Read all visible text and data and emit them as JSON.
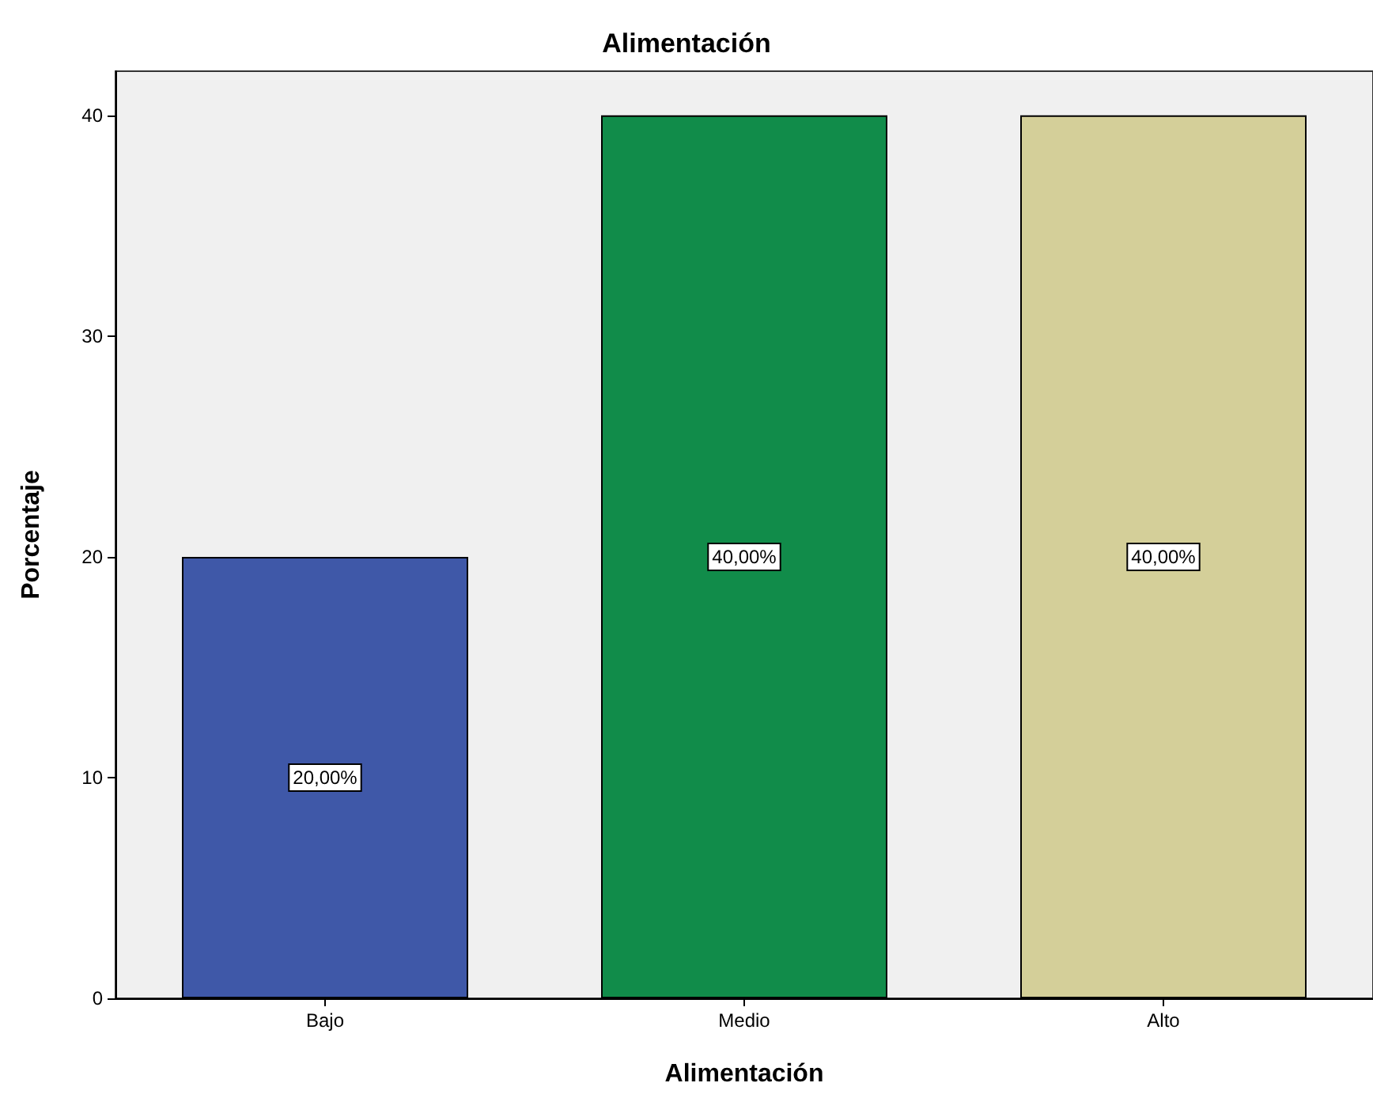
{
  "chart_data": {
    "type": "bar",
    "title": "Alimentación",
    "xlabel": "Alimentación",
    "ylabel": "Porcentaje",
    "categories": [
      "Bajo",
      "Medio",
      "Alto"
    ],
    "values": [
      20,
      40,
      40
    ],
    "colors": [
      "#3f58a8",
      "#118c4a",
      "#d4cf99"
    ],
    "value_labels": [
      "20,00%",
      "40,00%",
      "40,00%"
    ],
    "ylim": [
      0,
      42
    ],
    "yticks": [
      0,
      10,
      20,
      30,
      40
    ],
    "grid": false
  }
}
